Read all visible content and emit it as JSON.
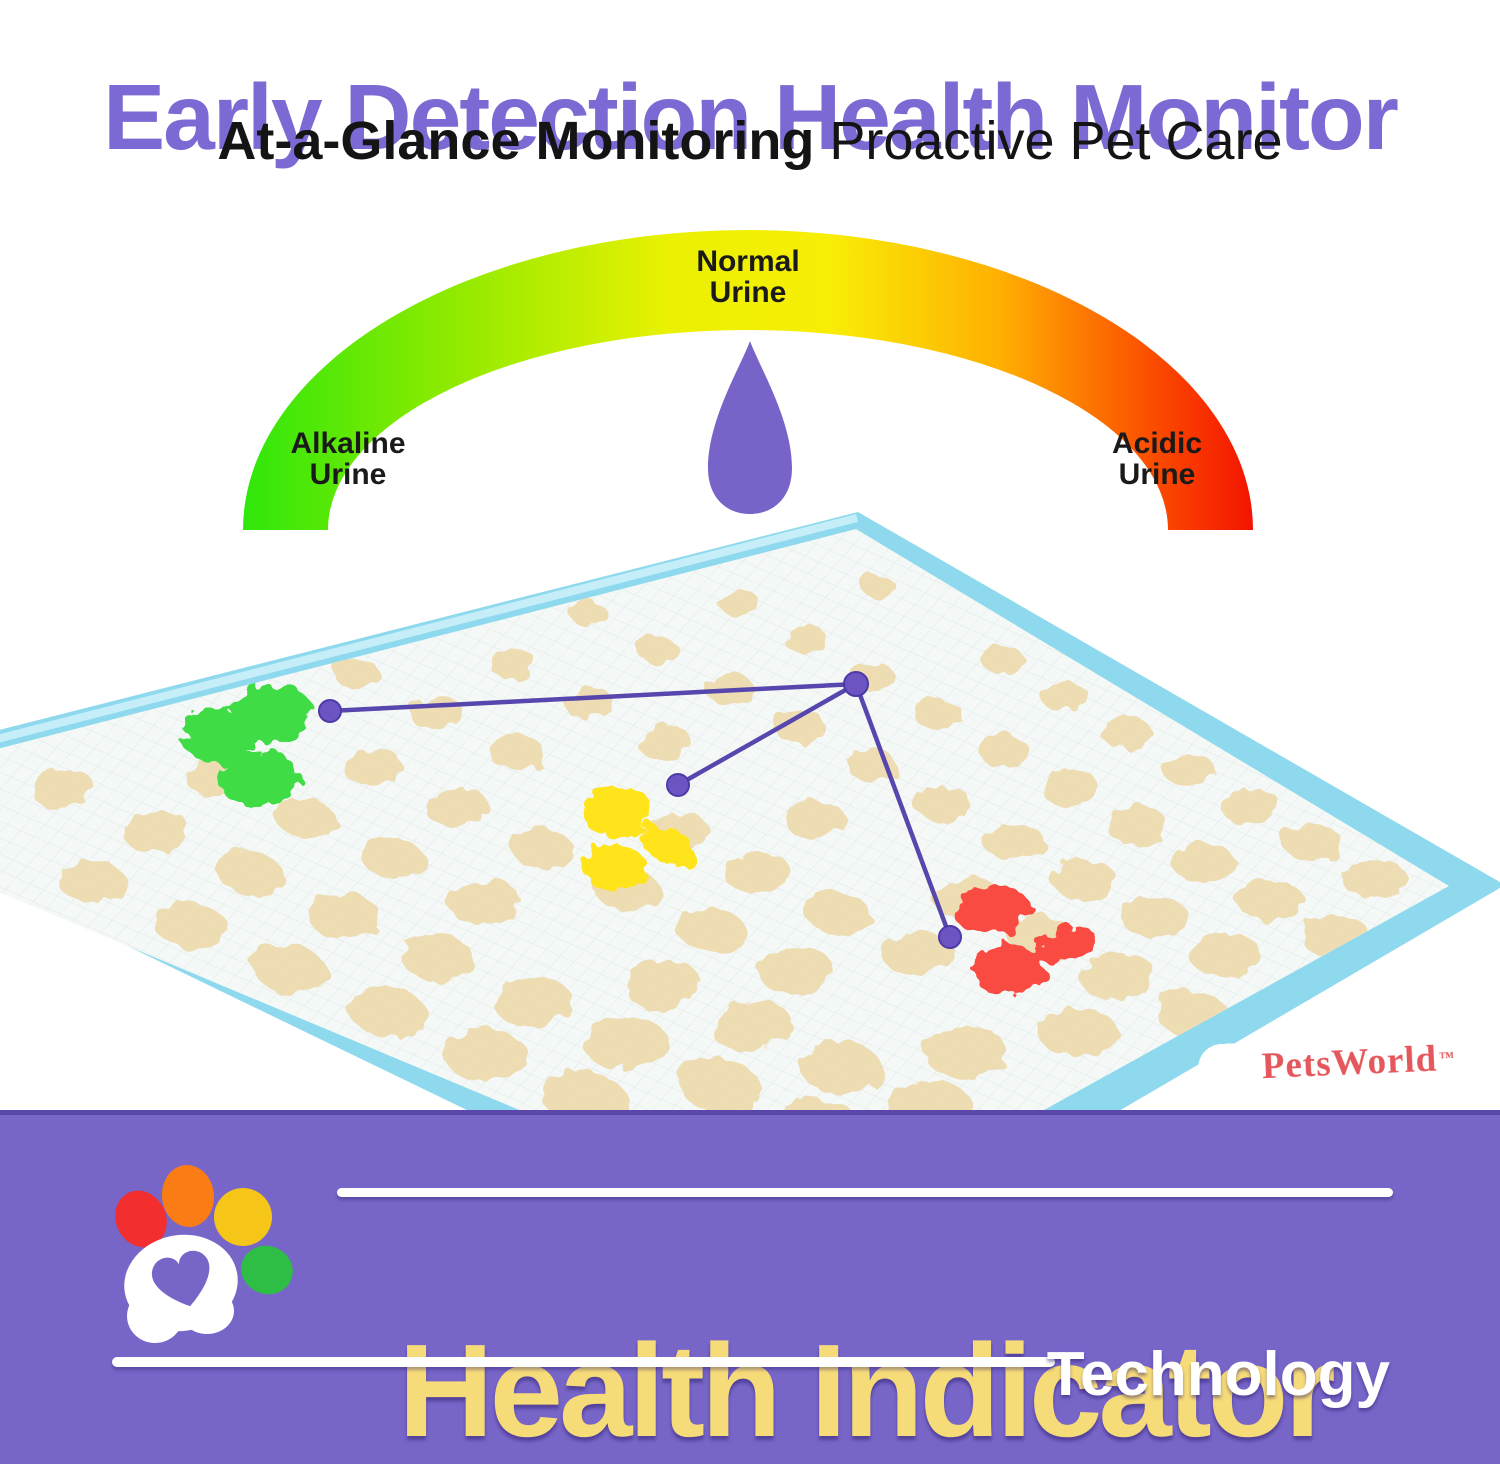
{
  "header": {
    "title": "Early Detection Health Monitor",
    "subtitle_bold": "At-a-Glance Monitoring",
    "subtitle_regular": " Proactive Pet Care"
  },
  "gauge": {
    "left_label": "Alkaline\nUrine",
    "center_label": "Normal\nUrine",
    "right_label": "Acidic\nUrine",
    "colors": {
      "alkaline_green": "#30E70B",
      "normal_yellow": "#F2EF05",
      "acidic_red": "#F31400",
      "pointer_purple": "#7863C8"
    }
  },
  "pad": {
    "brand": "PetsWorld",
    "trademark": "™",
    "edge_color": "#8ED9ED",
    "pattern_color": "#EDD6A4",
    "indicator_spots": [
      {
        "name": "alkaline-spots",
        "color": "#41DC45"
      },
      {
        "name": "normal-spots",
        "color": "#FFE41C"
      },
      {
        "name": "acidic-spots",
        "color": "#FA4B42"
      }
    ],
    "connector_color": "#5646AD"
  },
  "banner": {
    "title": "Health Indicator",
    "subtitle": "Technology",
    "background": "#7765C8",
    "title_color": "#F6DB79"
  }
}
